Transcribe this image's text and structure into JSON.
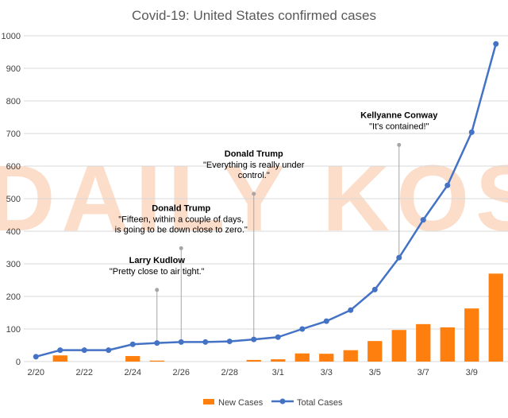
{
  "colors": {
    "new_cases": "#ff7f0e",
    "total_cases": "#4472c4",
    "grid": "#d9d9d9",
    "annotation_line": "#a6a6a6",
    "watermark": "#f8b48a"
  },
  "watermark": "DAILY KOS",
  "chart_data": {
    "type": "bar+line",
    "title": "Covid-19: United States confirmed cases",
    "xlabel": "",
    "ylabel": "",
    "ylim": [
      0,
      1000
    ],
    "y_ticks": [
      0,
      100,
      200,
      300,
      400,
      500,
      600,
      700,
      800,
      900,
      1000
    ],
    "x_tick_labels": [
      "2/20",
      "2/22",
      "2/24",
      "2/26",
      "2/28",
      "3/1",
      "3/3",
      "3/5",
      "3/7",
      "3/9"
    ],
    "categories": [
      "2/20",
      "2/21",
      "2/22",
      "2/23",
      "2/24",
      "2/25",
      "2/26",
      "2/27",
      "2/28",
      "2/29",
      "3/1",
      "3/2",
      "3/3",
      "3/4",
      "3/5",
      "3/6",
      "3/7",
      "3/8",
      "3/9",
      "3/10"
    ],
    "grid": "horizontal",
    "legend_position": "bottom",
    "series": [
      {
        "name": "New Cases",
        "type": "bar",
        "values": [
          0,
          19,
          0,
          0,
          17,
          3,
          0,
          0,
          0,
          5,
          7,
          25,
          24,
          35,
          63,
          97,
          115,
          105,
          163,
          270
        ]
      },
      {
        "name": "Total Cases",
        "type": "line",
        "values": [
          15,
          35,
          35,
          35,
          53,
          57,
          60,
          60,
          62,
          68,
          75,
          100,
          124,
          158,
          221,
          319,
          435,
          541,
          704,
          975
        ]
      }
    ],
    "annotations": [
      {
        "name": "Larry Kudlow",
        "quote": [
          "\"Pretty close to air tight.\""
        ],
        "index": 5,
        "line_top": 220
      },
      {
        "name": "Donald Trump",
        "quote": [
          "\"Fifteen, within a couple of days,",
          "is going to be down close to zero.\""
        ],
        "index": 6,
        "line_top": 348
      },
      {
        "name": "Donald Trump",
        "quote": [
          "\"Everything is really under",
          "control.\""
        ],
        "index": 9,
        "line_top": 515
      },
      {
        "name": "Kellyanne Conway",
        "quote": [
          "\"It's contained!\""
        ],
        "index": 15,
        "line_top": 665
      }
    ]
  }
}
